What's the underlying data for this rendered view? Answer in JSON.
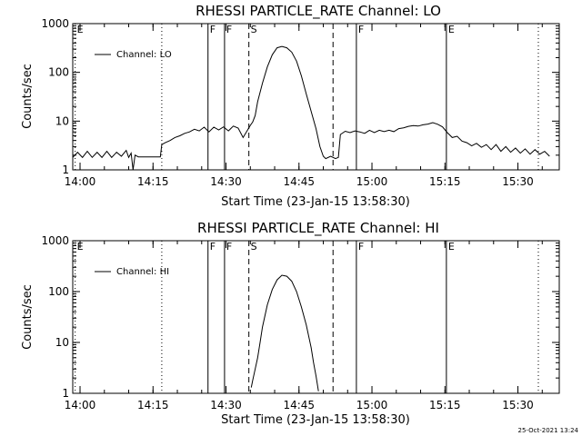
{
  "footer": {
    "timestamp": "25-Oct-2021 13:24"
  },
  "chart_data": [
    {
      "type": "line",
      "title": "RHESSI PARTICLE_RATE Channel: LO",
      "xlabel": "Start Time (23-Jan-15 13:58:30)",
      "ylabel": "Counts/sec",
      "yscale": "log",
      "xlim": [
        0,
        100
      ],
      "ylim": [
        1,
        1000
      ],
      "x_ticks": [
        {
          "t": 1.5,
          "label": "14:00"
        },
        {
          "t": 16.5,
          "label": "14:15"
        },
        {
          "t": 31.5,
          "label": "14:30"
        },
        {
          "t": 46.5,
          "label": "14:45"
        },
        {
          "t": 61.5,
          "label": "15:00"
        },
        {
          "t": 76.5,
          "label": "15:15"
        },
        {
          "t": 91.5,
          "label": "15:30"
        }
      ],
      "y_ticks": [
        {
          "v": 1,
          "label": "1"
        },
        {
          "v": 10,
          "label": "10"
        },
        {
          "v": 100,
          "label": "100"
        },
        {
          "v": 1000,
          "label": "1000"
        }
      ],
      "legend": {
        "label": "Channel: LO",
        "position": "top-left"
      },
      "markers": [
        {
          "t": 0.5,
          "label": "E",
          "style": "dotted"
        },
        {
          "t": 18.3,
          "label": "",
          "style": "dotted"
        },
        {
          "t": 27.8,
          "label": "F",
          "style": "solid"
        },
        {
          "t": 31.2,
          "label": "F",
          "style": "solid"
        },
        {
          "t": 36.2,
          "label": "S",
          "style": "dashed"
        },
        {
          "t": 53.5,
          "label": "",
          "style": "dashed"
        },
        {
          "t": 58.3,
          "label": "F",
          "style": "solid"
        },
        {
          "t": 76.8,
          "label": "E",
          "style": "solid"
        },
        {
          "t": 95.7,
          "label": "",
          "style": "dotted"
        }
      ],
      "series": [
        {
          "name": "Channel: LO",
          "points": [
            [
              0,
              1.8
            ],
            [
              1,
              2.3
            ],
            [
              2,
              1.8
            ],
            [
              3,
              2.4
            ],
            [
              4,
              1.8
            ],
            [
              5,
              2.3
            ],
            [
              6,
              1.8
            ],
            [
              7,
              2.4
            ],
            [
              8,
              1.8
            ],
            [
              9,
              2.3
            ],
            [
              10,
              1.9
            ],
            [
              11,
              2.5
            ],
            [
              11.5,
              1.8
            ],
            [
              12,
              2.2
            ],
            [
              12.4,
              1.0
            ],
            [
              12.8,
              2.0
            ],
            [
              13.5,
              1.85
            ],
            [
              14,
              1.85
            ],
            [
              16,
              1.85
            ],
            [
              17,
              1.85
            ],
            [
              18,
              1.85
            ],
            [
              18.3,
              3.3
            ],
            [
              19,
              3.6
            ],
            [
              20,
              4.0
            ],
            [
              21,
              4.6
            ],
            [
              22,
              5.0
            ],
            [
              23,
              5.6
            ],
            [
              24,
              6.0
            ],
            [
              25,
              6.8
            ],
            [
              26,
              6.3
            ],
            [
              27,
              7.5
            ],
            [
              28,
              6.0
            ],
            [
              29,
              7.5
            ],
            [
              30,
              6.6
            ],
            [
              31,
              7.6
            ],
            [
              32,
              6.3
            ],
            [
              33,
              7.9
            ],
            [
              34,
              7.2
            ],
            [
              35,
              4.6
            ],
            [
              35.7,
              6.0
            ],
            [
              36.5,
              8.2
            ],
            [
              37,
              9.6
            ],
            [
              37.5,
              13
            ],
            [
              38,
              25
            ],
            [
              39,
              60
            ],
            [
              40,
              130
            ],
            [
              41,
              230
            ],
            [
              42,
              320
            ],
            [
              43,
              340
            ],
            [
              44,
              320
            ],
            [
              45,
              260
            ],
            [
              46,
              170
            ],
            [
              47,
              85
            ],
            [
              48,
              36
            ],
            [
              49,
              16
            ],
            [
              50,
              7
            ],
            [
              50.8,
              3
            ],
            [
              51.5,
              1.9
            ],
            [
              52,
              1.7
            ],
            [
              53,
              1.9
            ],
            [
              54,
              1.7
            ],
            [
              54.6,
              1.8
            ],
            [
              55,
              5.3
            ],
            [
              56,
              6.2
            ],
            [
              57,
              5.8
            ],
            [
              58,
              6.3
            ],
            [
              59,
              6.0
            ],
            [
              60,
              5.6
            ],
            [
              61,
              6.5
            ],
            [
              62,
              5.8
            ],
            [
              63,
              6.5
            ],
            [
              64,
              6.1
            ],
            [
              65,
              6.5
            ],
            [
              66,
              6.1
            ],
            [
              67,
              7.0
            ],
            [
              68,
              7.3
            ],
            [
              69,
              7.8
            ],
            [
              70,
              8.1
            ],
            [
              71,
              7.9
            ],
            [
              72,
              8.4
            ],
            [
              73,
              8.7
            ],
            [
              74,
              9.3
            ],
            [
              75,
              8.6
            ],
            [
              76,
              7.6
            ],
            [
              77,
              5.8
            ],
            [
              78,
              4.6
            ],
            [
              79,
              4.9
            ],
            [
              80,
              3.9
            ],
            [
              81,
              3.6
            ],
            [
              82,
              3.1
            ],
            [
              83,
              3.5
            ],
            [
              84,
              2.9
            ],
            [
              85,
              3.3
            ],
            [
              86,
              2.6
            ],
            [
              87,
              3.3
            ],
            [
              88,
              2.4
            ],
            [
              89,
              3.0
            ],
            [
              90,
              2.3
            ],
            [
              91,
              2.8
            ],
            [
              92,
              2.2
            ],
            [
              93,
              2.7
            ],
            [
              94,
              2.1
            ],
            [
              95,
              2.6
            ],
            [
              96,
              2.1
            ],
            [
              97,
              2.4
            ],
            [
              98,
              1.9
            ]
          ]
        }
      ]
    },
    {
      "type": "line",
      "title": "RHESSI PARTICLE_RATE Channel: HI",
      "xlabel": "Start Time (23-Jan-15 13:58:30)",
      "ylabel": "Counts/sec",
      "yscale": "log",
      "xlim": [
        0,
        100
      ],
      "ylim": [
        1,
        1000
      ],
      "x_ticks": [
        {
          "t": 1.5,
          "label": "14:00"
        },
        {
          "t": 16.5,
          "label": "14:15"
        },
        {
          "t": 31.5,
          "label": "14:30"
        },
        {
          "t": 46.5,
          "label": "14:45"
        },
        {
          "t": 61.5,
          "label": "15:00"
        },
        {
          "t": 76.5,
          "label": "15:15"
        },
        {
          "t": 91.5,
          "label": "15:30"
        }
      ],
      "y_ticks": [
        {
          "v": 1,
          "label": "1"
        },
        {
          "v": 10,
          "label": "10"
        },
        {
          "v": 100,
          "label": "100"
        },
        {
          "v": 1000,
          "label": "1000"
        }
      ],
      "legend": {
        "label": "Channel: HI",
        "position": "top-left"
      },
      "markers": [
        {
          "t": 0.5,
          "label": "E",
          "style": "dotted"
        },
        {
          "t": 18.3,
          "label": "",
          "style": "dotted"
        },
        {
          "t": 27.8,
          "label": "F",
          "style": "solid"
        },
        {
          "t": 31.2,
          "label": "F",
          "style": "solid"
        },
        {
          "t": 36.2,
          "label": "S",
          "style": "dashed"
        },
        {
          "t": 53.5,
          "label": "",
          "style": "dashed"
        },
        {
          "t": 58.3,
          "label": "F",
          "style": "solid"
        },
        {
          "t": 76.8,
          "label": "E",
          "style": "solid"
        },
        {
          "t": 95.7,
          "label": "",
          "style": "dotted"
        }
      ],
      "series": [
        {
          "name": "Channel: HI",
          "points": [
            [
              36.7,
              1.3
            ],
            [
              37,
              1.8
            ],
            [
              37.5,
              3
            ],
            [
              38,
              5
            ],
            [
              38.5,
              10
            ],
            [
              39,
              20
            ],
            [
              40,
              55
            ],
            [
              41,
              110
            ],
            [
              42,
              170
            ],
            [
              43,
              210
            ],
            [
              44,
              200
            ],
            [
              45,
              160
            ],
            [
              46,
              100
            ],
            [
              47,
              50
            ],
            [
              48,
              22
            ],
            [
              49,
              8
            ],
            [
              49.5,
              4
            ],
            [
              50,
              2.2
            ],
            [
              50.5,
              1.1
            ]
          ]
        }
      ]
    }
  ]
}
